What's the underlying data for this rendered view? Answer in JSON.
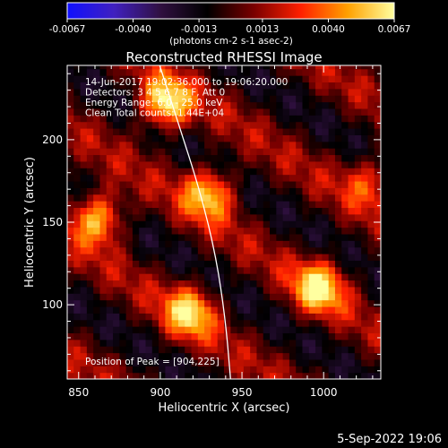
{
  "chart_data": {
    "type": "heatmap",
    "title": "Reconstructed RHESSI Image",
    "xlabel": "Heliocentric X (arcsec)",
    "ylabel": "Heliocentric Y (arcsec)",
    "xlim": [
      843,
      1035
    ],
    "ylim": [
      55,
      245
    ],
    "x_ticks": [
      850,
      900,
      950,
      1000
    ],
    "y_ticks": [
      100,
      150,
      200
    ],
    "colorbar": {
      "min": -0.0067,
      "max": 0.0067,
      "ticks": [
        "-0.0067",
        "-0.0040",
        "-0.0013",
        "0.0013",
        "0.0040",
        "0.0067"
      ],
      "unit_label": "(photons cm-2 s-1 asec-2)",
      "colormap": [
        "#1010ff",
        "#4020c0",
        "#301040",
        "#000000",
        "#7a0000",
        "#ff2000",
        "#ffa000",
        "#ffffa0"
      ]
    },
    "annotations": [
      "14-Jun-2017 19:02:36.000 to 19:06:20.000",
      "Detectors: 3 4 5 6 7 8 F, Att 0",
      "Energy Range: 6.0 - 25.0 keV",
      "Clean     Total counts: 1.44E+04"
    ],
    "peak": {
      "label": "Position of Peak = [904,225]",
      "x": 904,
      "y": 225
    },
    "bright_sources": [
      {
        "x": 903,
        "y": 222,
        "peak": 0.0067
      },
      {
        "x": 862,
        "y": 153,
        "peak": 0.006
      },
      {
        "x": 930,
        "y": 168,
        "peak": 0.0055
      },
      {
        "x": 918,
        "y": 96,
        "peak": 0.0055
      },
      {
        "x": 997,
        "y": 111,
        "peak": 0.006
      },
      {
        "x": 1028,
        "y": 175,
        "peak": 0.003
      }
    ],
    "limb_curve": [
      [
        898,
        250
      ],
      [
        911,
        210
      ],
      [
        924,
        170
      ],
      [
        934,
        130
      ],
      [
        940,
        90
      ],
      [
        943,
        55
      ]
    ]
  },
  "footer_date": "5-Sep-2022 19:06"
}
